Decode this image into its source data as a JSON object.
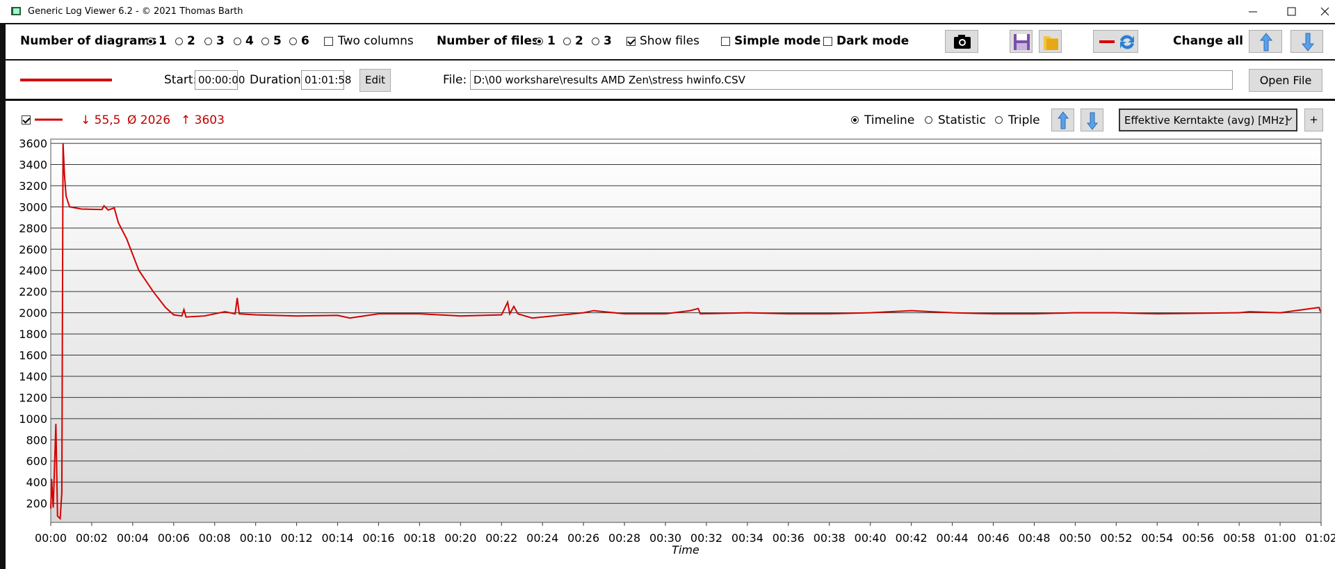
{
  "window": {
    "title": "Generic Log Viewer 6.2 - © 2021 Thomas Barth"
  },
  "toolbar": {
    "diagrams_label": "Number of diagrams",
    "diagram_options": [
      "1",
      "2",
      "3",
      "4",
      "5",
      "6"
    ],
    "two_columns": "Two columns",
    "files_label": "Number of files",
    "file_options": [
      "1",
      "2",
      "3"
    ],
    "show_files": "Show files",
    "simple_mode": "Simple mode",
    "dark_mode": "Dark mode",
    "change_all": "Change all"
  },
  "file_bar": {
    "start_label": "Start:",
    "start": "00:00:00",
    "duration_label": "Duration:",
    "duration": "01:01:58",
    "edit": "Edit",
    "file_label": "File:",
    "file_path": "D:\\00 workshare\\results AMD Zen\\stress hwinfo.CSV",
    "open_file": "Open File"
  },
  "diagram_bar": {
    "min": "↓ 55,5",
    "avg": "Ø 2026",
    "max": "↑ 3603",
    "modes": [
      "Timeline",
      "Statistic",
      "Triple"
    ],
    "channel": "Effektive Kerntakte (avg) [MHz]",
    "add": "+"
  },
  "chart_data": {
    "type": "line",
    "xlabel": "Time",
    "x": [
      0,
      0.04,
      0.12,
      0.25,
      0.33,
      0.46,
      0.54,
      0.6,
      0.67,
      0.75,
      0.92,
      1.5,
      2.5,
      2.6,
      2.8,
      3.1,
      3.3,
      3.7,
      4.0,
      4.3,
      5.0,
      5.6,
      6.0,
      6.4,
      6.5,
      6.6,
      7.5,
      8.5,
      9.0,
      9.1,
      9.2,
      10,
      12,
      14,
      14.6,
      16,
      18,
      20,
      22,
      22.3,
      22.4,
      22.6,
      22.8,
      23.5,
      24,
      26,
      26.5,
      28,
      30,
      31.2,
      31.6,
      31.7,
      34,
      36,
      38,
      40,
      42,
      44,
      46,
      48,
      50,
      52,
      54,
      56,
      58,
      58.5,
      60,
      61.9,
      61.97
    ],
    "series": [
      {
        "color": "#d40000",
        "values": [
          150,
          430,
          160,
          950,
          80,
          56,
          300,
          3603,
          3300,
          3100,
          3000,
          2980,
          2975,
          3010,
          2970,
          2990,
          2850,
          2700,
          2550,
          2400,
          2200,
          2050,
          1980,
          1970,
          2030,
          1960,
          1970,
          2010,
          1990,
          2140,
          1990,
          1980,
          1970,
          1975,
          1950,
          1990,
          1990,
          1970,
          1980,
          2100,
          1990,
          2060,
          1990,
          1950,
          1960,
          2000,
          2020,
          1990,
          1990,
          2020,
          2040,
          1990,
          2000,
          1990,
          1990,
          2000,
          2020,
          2000,
          1990,
          1990,
          2000,
          2000,
          1990,
          1995,
          2000,
          2010,
          2000,
          2050,
          2010
        ]
      }
    ],
    "xlim": [
      0,
      62
    ],
    "xticks": [
      {
        "value": 0,
        "label": "00:00"
      },
      {
        "value": 2,
        "label": "00:02"
      },
      {
        "value": 4,
        "label": "00:04"
      },
      {
        "value": 6,
        "label": "00:06"
      },
      {
        "value": 8,
        "label": "00:08"
      },
      {
        "value": 10,
        "label": "00:10"
      },
      {
        "value": 12,
        "label": "00:12"
      },
      {
        "value": 14,
        "label": "00:14"
      },
      {
        "value": 16,
        "label": "00:16"
      },
      {
        "value": 18,
        "label": "00:18"
      },
      {
        "value": 20,
        "label": "00:20"
      },
      {
        "value": 22,
        "label": "00:22"
      },
      {
        "value": 24,
        "label": "00:24"
      },
      {
        "value": 26,
        "label": "00:26"
      },
      {
        "value": 28,
        "label": "00:28"
      },
      {
        "value": 30,
        "label": "00:30"
      },
      {
        "value": 32,
        "label": "00:32"
      },
      {
        "value": 34,
        "label": "00:34"
      },
      {
        "value": 36,
        "label": "00:36"
      },
      {
        "value": 38,
        "label": "00:38"
      },
      {
        "value": 40,
        "label": "00:40"
      },
      {
        "value": 42,
        "label": "00:42"
      },
      {
        "value": 44,
        "label": "00:44"
      },
      {
        "value": 46,
        "label": "00:46"
      },
      {
        "value": 48,
        "label": "00:48"
      },
      {
        "value": 50,
        "label": "00:50"
      },
      {
        "value": 52,
        "label": "00:52"
      },
      {
        "value": 54,
        "label": "00:54"
      },
      {
        "value": 56,
        "label": "00:56"
      },
      {
        "value": 58,
        "label": "00:58"
      },
      {
        "value": 60,
        "label": "01:00"
      },
      {
        "value": 62,
        "label": "01:02"
      }
    ],
    "ylim": [
      20,
      3640
    ],
    "yticks": [
      200,
      400,
      600,
      800,
      1000,
      1200,
      1400,
      1600,
      1800,
      2000,
      2200,
      2400,
      2600,
      2800,
      3000,
      3200,
      3400,
      3600
    ],
    "grid": true
  }
}
